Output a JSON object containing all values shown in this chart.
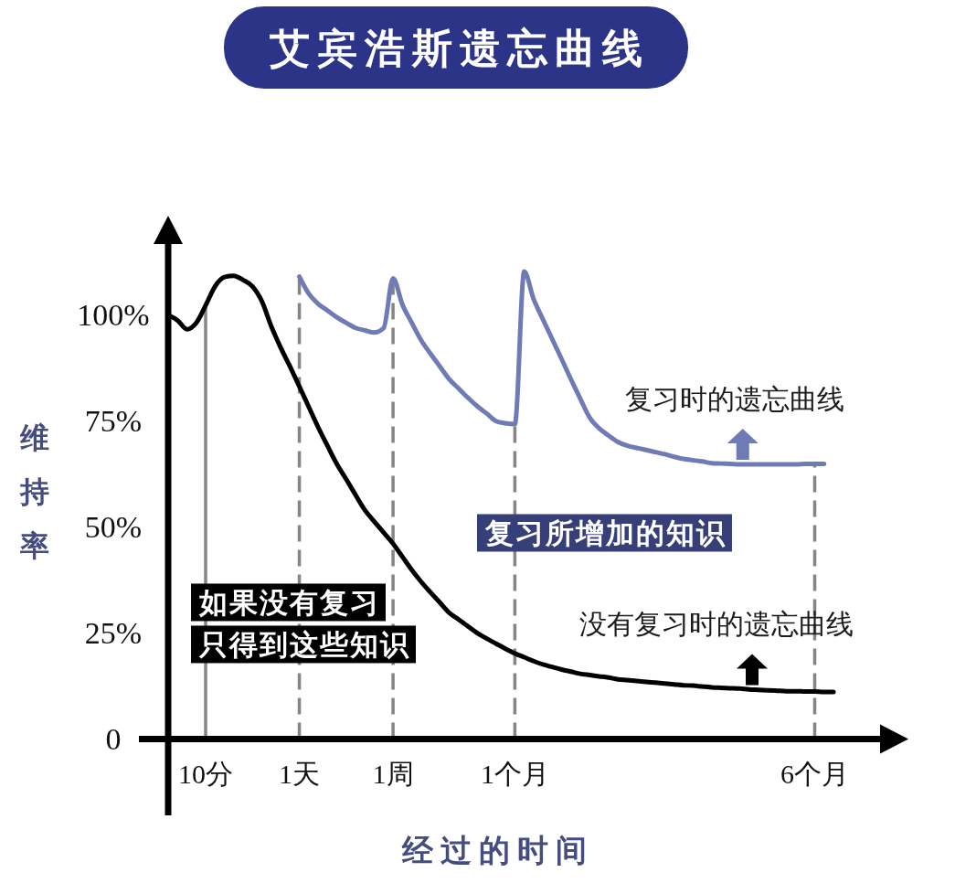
{
  "chart_data": {
    "type": "line",
    "title": "艾宾浩斯遗忘曲线",
    "xlabel": "经过的时间",
    "ylabel": "维持率",
    "categories": [
      null,
      null,
      null,
      null,
      "10分",
      null,
      null,
      null,
      null,
      null,
      null,
      null,
      null,
      null,
      "1天",
      null,
      null,
      null,
      null,
      null,
      null,
      null,
      null,
      null,
      "1周",
      null,
      null,
      null,
      null,
      null,
      null,
      null,
      null,
      null,
      null,
      null,
      null,
      "1个月",
      null,
      null,
      null,
      null,
      null,
      null,
      null,
      null,
      null,
      null,
      null,
      null,
      null,
      null,
      null,
      null,
      null,
      null,
      null,
      null,
      null,
      null,
      null,
      null,
      null,
      null,
      null,
      null,
      null,
      null,
      null,
      "6个月",
      null,
      null
    ],
    "ylim": [
      -18,
      117
    ],
    "yticks": [
      0,
      {
        "value": 25,
        "label": "25%"
      },
      {
        "value": 50,
        "label": "50%"
      },
      {
        "value": 75,
        "label": "75%"
      },
      {
        "value": 100,
        "label": "100%"
      }
    ],
    "series": [
      {
        "name": "没有复习时的遗忘曲线",
        "color": "#000000",
        "values": [
          100,
          98.8,
          96.7,
          98.2,
          102.3,
          106.8,
          109.0,
          109.3,
          108.3,
          106.8,
          103.3,
          97.4,
          92.4,
          87.9,
          83.2,
          78.4,
          73.6,
          69.2,
          64.9,
          61.3,
          57.6,
          54.0,
          51.3,
          48.7,
          46.1,
          43.0,
          39.9,
          37.1,
          34.6,
          32.2,
          29.8,
          28.2,
          26.6,
          25.0,
          23.7,
          22.5,
          21.3,
          20.2,
          19.3,
          18.4,
          17.6,
          17.0,
          16.4,
          15.9,
          15.4,
          15.1,
          14.8,
          14.5,
          14.1,
          13.9,
          13.7,
          13.5,
          13.3,
          13.1,
          12.9,
          12.7,
          12.6,
          12.4,
          12.2,
          12.1,
          12.0,
          11.9,
          11.7,
          11.6,
          11.5,
          11.4,
          11.3,
          11.3,
          11.2,
          11.2,
          11.1,
          11.1
        ]
      },
      {
        "name": "复习时的遗忘曲线",
        "color": "#6e7bb5",
        "values": [
          null,
          null,
          null,
          null,
          null,
          null,
          null,
          null,
          null,
          null,
          null,
          null,
          null,
          null,
          109.1,
          105.1,
          102.7,
          101.1,
          99.5,
          98.2,
          97.0,
          96.4,
          95.9,
          97.0,
          108.7,
          102.5,
          98.2,
          94.1,
          90.9,
          87.9,
          84.9,
          82.7,
          80.5,
          78.5,
          76.8,
          75.0,
          74.5,
          74.3,
          110.3,
          103.8,
          99.0,
          94.3,
          89.6,
          84.8,
          80.2,
          75.8,
          73.3,
          71.6,
          70.1,
          69.2,
          68.7,
          68.2,
          67.7,
          67.2,
          66.6,
          66.1,
          65.8,
          65.5,
          65.1,
          65.0,
          64.9,
          64.8,
          64.8,
          64.8,
          64.8,
          64.8,
          64.8,
          64.8,
          64.9,
          64.9,
          64.9,
          null
        ]
      }
    ],
    "ref_lines": [
      {
        "axis": "x",
        "value": "10分",
        "color": "#858585",
        "line_style": "solid"
      },
      {
        "axis": "x",
        "value": "1天",
        "color": "#858585",
        "line_style": "dashed"
      },
      {
        "axis": "x",
        "value": "1周",
        "color": "#858585",
        "line_style": "dashed"
      },
      {
        "axis": "x",
        "value": "1个月",
        "color": "#858585",
        "line_style": "dashed"
      },
      {
        "axis": "x",
        "value": "6个月",
        "color": "#858585",
        "line_style": "dashed"
      }
    ],
    "annotations": [
      "复习所增加的知识",
      "如果没有复习",
      "只得到这些知识"
    ]
  }
}
